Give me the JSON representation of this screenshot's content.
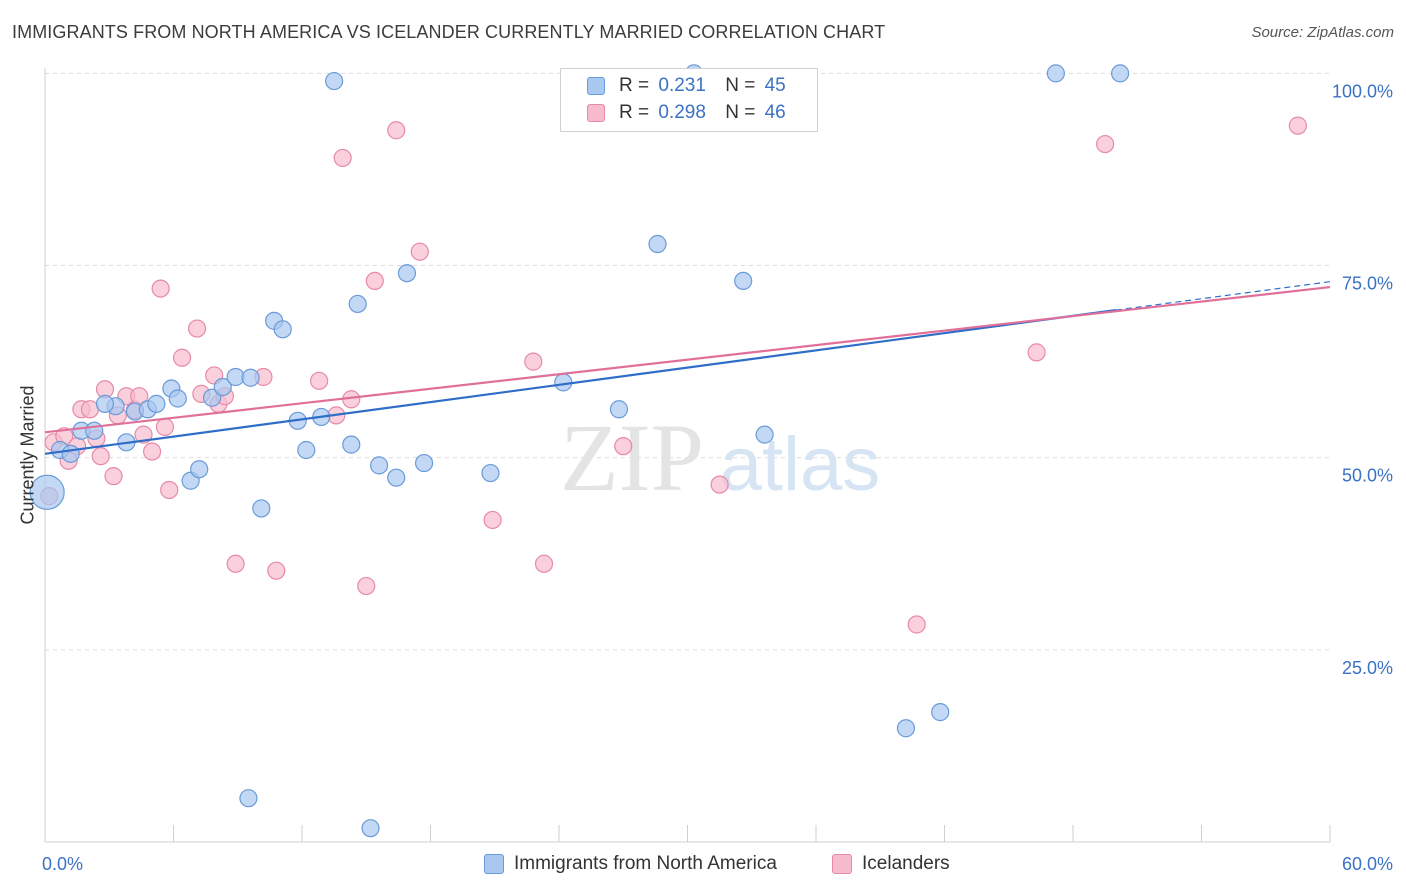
{
  "title": "IMMIGRANTS FROM NORTH AMERICA VS ICELANDER CURRENTLY MARRIED CORRELATION CHART",
  "source": "Source: ZipAtlas.com",
  "watermark": {
    "zip": "ZIP",
    "atlas": "atlas"
  },
  "colors": {
    "blue_fill": "#a8c8f0",
    "blue_stroke": "#6a9bd8",
    "blue_line": "#2f6ec8",
    "pink_fill": "#f6bccd",
    "pink_stroke": "#e78aa8",
    "pink_line": "#e0709a",
    "tick_label": "#3a72c4",
    "grid": "#dcdcdc"
  },
  "legend_top": {
    "rows": [
      {
        "r_label": "R =",
        "r_value": "0.231",
        "n_label": "N =",
        "n_value": "45"
      },
      {
        "r_label": "R =",
        "r_value": "0.298",
        "n_label": "N =",
        "n_value": "46"
      }
    ]
  },
  "legend_bottom": [
    "Immigrants from North America",
    "Icelanders"
  ],
  "chart_data": {
    "type": "scatter",
    "title": "IMMIGRANTS FROM NORTH AMERICA VS ICELANDER CURRENTLY MARRIED CORRELATION CHART",
    "xlabel": "",
    "ylabel": "Currently Married",
    "xlim": [
      0,
      60
    ],
    "ylim": [
      0,
      102
    ],
    "x_tick_labels": [
      "0.0%",
      "60.0%"
    ],
    "y_ticks": [
      25,
      50,
      75,
      100
    ],
    "y_tick_labels": [
      "25.0%",
      "50.0%",
      "75.0%",
      "100.0%"
    ],
    "grid": true,
    "legend_placement": "top-center and bottom",
    "series": [
      {
        "name": "Immigrants from North America",
        "r": 0.231,
        "n": 45,
        "trend": {
          "x0": 0,
          "y0": 50.5,
          "x1": 50,
          "y1": 69.2,
          "dashed_to_x": 60,
          "dashed_to_y": 72.9
        },
        "points": [
          {
            "x": 0.1,
            "y": 45.5,
            "big": true
          },
          {
            "x": 0.7,
            "y": 51.0
          },
          {
            "x": 1.2,
            "y": 50.5
          },
          {
            "x": 1.7,
            "y": 53.5
          },
          {
            "x": 2.3,
            "y": 53.5
          },
          {
            "x": 3.3,
            "y": 56.7
          },
          {
            "x": 2.8,
            "y": 57.0
          },
          {
            "x": 3.8,
            "y": 52.0
          },
          {
            "x": 4.2,
            "y": 56.0
          },
          {
            "x": 4.8,
            "y": 56.3
          },
          {
            "x": 5.2,
            "y": 57.0
          },
          {
            "x": 5.9,
            "y": 59.0
          },
          {
            "x": 6.2,
            "y": 57.7
          },
          {
            "x": 6.8,
            "y": 47.0
          },
          {
            "x": 7.2,
            "y": 48.5
          },
          {
            "x": 7.8,
            "y": 57.8
          },
          {
            "x": 8.3,
            "y": 59.2
          },
          {
            "x": 8.9,
            "y": 60.5
          },
          {
            "x": 9.6,
            "y": 60.4
          },
          {
            "x": 10.1,
            "y": 43.4
          },
          {
            "x": 10.7,
            "y": 67.8
          },
          {
            "x": 11.1,
            "y": 66.7
          },
          {
            "x": 11.8,
            "y": 54.8
          },
          {
            "x": 12.2,
            "y": 51.0
          },
          {
            "x": 12.9,
            "y": 55.3
          },
          {
            "x": 14.3,
            "y": 51.7
          },
          {
            "x": 14.6,
            "y": 70.0
          },
          {
            "x": 15.6,
            "y": 49.0
          },
          {
            "x": 16.4,
            "y": 47.4
          },
          {
            "x": 16.9,
            "y": 74.0
          },
          {
            "x": 17.7,
            "y": 49.3
          },
          {
            "x": 13.5,
            "y": 99.0
          },
          {
            "x": 20.8,
            "y": 48.0
          },
          {
            "x": 24.2,
            "y": 59.8
          },
          {
            "x": 26.8,
            "y": 56.3
          },
          {
            "x": 28.6,
            "y": 77.8
          },
          {
            "x": 32.6,
            "y": 73.0
          },
          {
            "x": 33.6,
            "y": 53.0
          },
          {
            "x": 30.3,
            "y": 100.0
          },
          {
            "x": 47.2,
            "y": 100.0
          },
          {
            "x": 50.2,
            "y": 100.0
          },
          {
            "x": 40.2,
            "y": 14.8
          },
          {
            "x": 41.8,
            "y": 16.9
          },
          {
            "x": 9.5,
            "y": 5.7
          },
          {
            "x": 15.2,
            "y": 1.8
          }
        ]
      },
      {
        "name": "Icelanders",
        "r": 0.298,
        "n": 46,
        "trend": {
          "x0": 0,
          "y0": 53.3,
          "x1": 60,
          "y1": 72.2
        },
        "points": [
          {
            "x": 0.2,
            "y": 45.0
          },
          {
            "x": 0.4,
            "y": 52.0
          },
          {
            "x": 0.9,
            "y": 52.8
          },
          {
            "x": 1.1,
            "y": 49.6
          },
          {
            "x": 1.5,
            "y": 51.5
          },
          {
            "x": 1.7,
            "y": 56.3
          },
          {
            "x": 2.1,
            "y": 56.3
          },
          {
            "x": 2.4,
            "y": 52.5
          },
          {
            "x": 2.6,
            "y": 50.2
          },
          {
            "x": 2.8,
            "y": 58.9
          },
          {
            "x": 3.2,
            "y": 47.6
          },
          {
            "x": 3.4,
            "y": 55.5
          },
          {
            "x": 3.8,
            "y": 58.0
          },
          {
            "x": 4.2,
            "y": 56.2
          },
          {
            "x": 4.6,
            "y": 53.0
          },
          {
            "x": 4.4,
            "y": 58.0
          },
          {
            "x": 5.0,
            "y": 50.8
          },
          {
            "x": 5.4,
            "y": 72.0
          },
          {
            "x": 5.6,
            "y": 54.0
          },
          {
            "x": 5.8,
            "y": 45.8
          },
          {
            "x": 6.4,
            "y": 63.0
          },
          {
            "x": 7.1,
            "y": 66.8
          },
          {
            "x": 7.3,
            "y": 58.3
          },
          {
            "x": 7.9,
            "y": 60.7
          },
          {
            "x": 8.1,
            "y": 57.0
          },
          {
            "x": 8.4,
            "y": 58.0
          },
          {
            "x": 8.9,
            "y": 36.2
          },
          {
            "x": 10.2,
            "y": 60.5
          },
          {
            "x": 10.8,
            "y": 35.3
          },
          {
            "x": 12.8,
            "y": 60.0
          },
          {
            "x": 13.6,
            "y": 55.5
          },
          {
            "x": 14.3,
            "y": 57.6
          },
          {
            "x": 13.9,
            "y": 89.0
          },
          {
            "x": 15.0,
            "y": 33.3
          },
          {
            "x": 15.4,
            "y": 73.0
          },
          {
            "x": 16.4,
            "y": 92.6
          },
          {
            "x": 17.5,
            "y": 76.8
          },
          {
            "x": 20.9,
            "y": 41.9
          },
          {
            "x": 22.8,
            "y": 62.5
          },
          {
            "x": 23.3,
            "y": 36.2
          },
          {
            "x": 27.0,
            "y": 51.5
          },
          {
            "x": 31.5,
            "y": 46.5
          },
          {
            "x": 40.7,
            "y": 28.3
          },
          {
            "x": 46.3,
            "y": 63.7
          },
          {
            "x": 49.5,
            "y": 90.8
          },
          {
            "x": 58.5,
            "y": 93.2
          }
        ]
      }
    ]
  }
}
